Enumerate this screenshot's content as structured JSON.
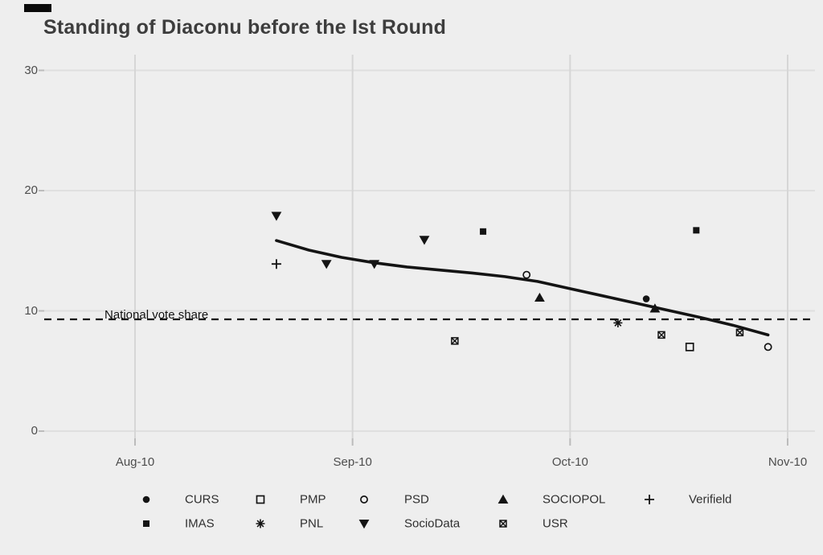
{
  "title": "Standing of Diaconu before the Ist Round",
  "chart_data": {
    "type": "scatter",
    "title": "Standing of Diaconu before the Ist Round",
    "xlabel": "",
    "ylabel": "",
    "x_axis": {
      "tick_labels": [
        "Aug-10",
        "Sep-10",
        "Oct-10",
        "Nov-10"
      ],
      "unit": "months_after_Aug_2010",
      "range_months": [
        -0.42,
        3.13
      ]
    },
    "y_axis": {
      "ticks": [
        0,
        10,
        20,
        30
      ],
      "range": [
        0,
        31.3
      ]
    },
    "grid": "on",
    "legend_position": "bottom",
    "mark_color": "#141414",
    "reference_line": {
      "label": "National vote share",
      "value": 9.3,
      "style": "dashed"
    },
    "series": [
      {
        "name": "CURS",
        "marker": "filled-circle",
        "points": [
          [
            2.35,
            11.0
          ]
        ]
      },
      {
        "name": "IMAS",
        "marker": "filled-square",
        "points": [
          [
            1.6,
            16.6
          ],
          [
            2.58,
            16.7
          ]
        ]
      },
      {
        "name": "PMP",
        "marker": "open-square",
        "points": [
          [
            2.55,
            7.0
          ]
        ]
      },
      {
        "name": "PNL",
        "marker": "asterisk",
        "points": [
          [
            2.22,
            9.0
          ]
        ]
      },
      {
        "name": "PSD",
        "marker": "open-circle",
        "points": [
          [
            1.8,
            13.0
          ],
          [
            2.91,
            7.0
          ]
        ]
      },
      {
        "name": "SocioData",
        "marker": "triangle-down",
        "points": [
          [
            0.65,
            17.9
          ],
          [
            0.88,
            13.9
          ],
          [
            1.1,
            13.9
          ],
          [
            1.33,
            15.9
          ]
        ]
      },
      {
        "name": "SOCIOPOL",
        "marker": "triangle-up",
        "points": [
          [
            1.86,
            11.1
          ],
          [
            2.39,
            10.2
          ]
        ]
      },
      {
        "name": "USR",
        "marker": "square-cross",
        "points": [
          [
            1.47,
            7.5
          ],
          [
            2.42,
            8.0
          ],
          [
            2.78,
            8.2
          ]
        ]
      },
      {
        "name": "Verifield",
        "marker": "plus",
        "points": [
          [
            0.65,
            13.9
          ]
        ]
      }
    ],
    "trend_line": {
      "type": "smooth",
      "points": [
        [
          0.65,
          15.85
        ],
        [
          0.8,
          15.05
        ],
        [
          0.95,
          14.45
        ],
        [
          1.1,
          14.0
        ],
        [
          1.25,
          13.65
        ],
        [
          1.4,
          13.4
        ],
        [
          1.55,
          13.15
        ],
        [
          1.7,
          12.85
        ],
        [
          1.85,
          12.45
        ],
        [
          2.0,
          11.85
        ],
        [
          2.15,
          11.25
        ],
        [
          2.3,
          10.65
        ],
        [
          2.45,
          10.05
        ],
        [
          2.6,
          9.45
        ],
        [
          2.75,
          8.8
        ],
        [
          2.91,
          8.0
        ]
      ]
    }
  },
  "legend": {
    "items": [
      {
        "label": "CURS",
        "marker": "filled-circle",
        "row": 0,
        "col": 0
      },
      {
        "label": "PMP",
        "marker": "open-square",
        "row": 0,
        "col": 1
      },
      {
        "label": "PSD",
        "marker": "open-circle",
        "row": 0,
        "col": 2
      },
      {
        "label": "SOCIOPOL",
        "marker": "triangle-up",
        "row": 0,
        "col": 3
      },
      {
        "label": "Verifield",
        "marker": "plus",
        "row": 0,
        "col": 4
      },
      {
        "label": "IMAS",
        "marker": "filled-square",
        "row": 1,
        "col": 0
      },
      {
        "label": "PNL",
        "marker": "asterisk",
        "row": 1,
        "col": 1
      },
      {
        "label": "SocioData",
        "marker": "triangle-down",
        "row": 1,
        "col": 2
      },
      {
        "label": "USR",
        "marker": "square-cross",
        "row": 1,
        "col": 3
      }
    ]
  }
}
